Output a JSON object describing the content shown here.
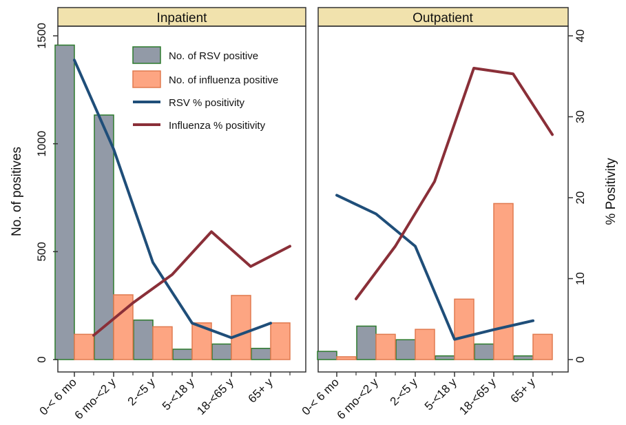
{
  "chart_data": {
    "type": "bar+line",
    "categories": [
      "0-< 6 mo",
      "6 mo-<2 y",
      "2-<5 y",
      "5-<18 y",
      "18-<65 y",
      "65+ y"
    ],
    "y_left_label": "No. of positives",
    "y_left_lim": [
      0,
      1500
    ],
    "y_left_ticks": [
      0,
      500,
      1000,
      1500
    ],
    "y_right_label": "% Positivity",
    "y_right_lim": [
      0,
      40
    ],
    "y_right_ticks": [
      0,
      10,
      20,
      30,
      40
    ],
    "legend": {
      "placement": "top-right of left panel",
      "entries": [
        {
          "label": "No. of RSV positive",
          "kind": "bar",
          "color": "#929aa7",
          "edge": "#2c7a2c"
        },
        {
          "label": "No. of influenza positive",
          "kind": "bar",
          "color": "#fda582",
          "edge": "#e07a4f"
        },
        {
          "label": "RSV % positivity",
          "kind": "line",
          "color": "#1f4e79"
        },
        {
          "label": "Influenza % positivity",
          "kind": "line",
          "color": "#8a2f38"
        }
      ]
    },
    "panels": [
      {
        "title": "Inpatient",
        "rsv_count": [
          1457,
          1133,
          183,
          48,
          72,
          52
        ],
        "flu_count": [
          117,
          300,
          152,
          170,
          297,
          170
        ],
        "rsv_pct": [
          37,
          26,
          12,
          4.5,
          2.7,
          4.5
        ],
        "flu_pct": [
          3,
          7,
          10.5,
          15.8,
          11.5,
          14
        ]
      },
      {
        "title": "Outpatient",
        "rsv_count": [
          38,
          155,
          92,
          17,
          72,
          17
        ],
        "flu_count": [
          13,
          117,
          140,
          280,
          723,
          117
        ],
        "rsv_pct": [
          20.3,
          18,
          14,
          2.5,
          3.7,
          4.8
        ],
        "flu_pct": [
          7.5,
          14,
          22,
          36,
          35.3,
          27.8
        ]
      }
    ]
  }
}
